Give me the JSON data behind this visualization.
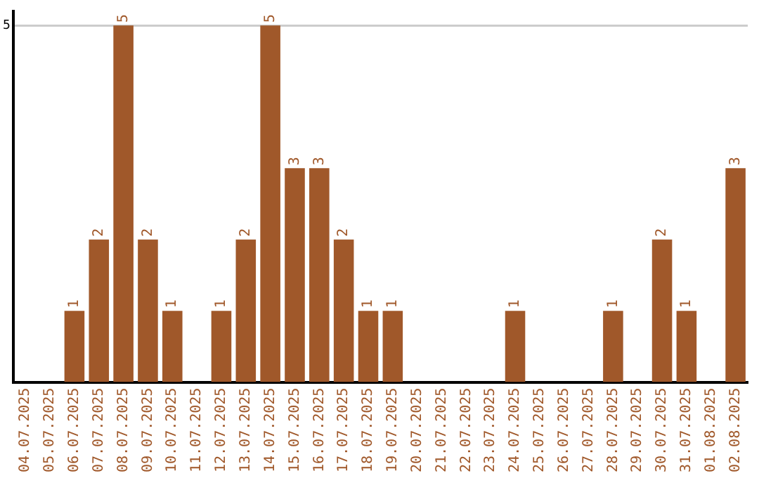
{
  "chart_data": {
    "type": "bar",
    "categories": [
      "04.07.2025",
      "05.07.2025",
      "06.07.2025",
      "07.07.2025",
      "08.07.2025",
      "09.07.2025",
      "10.07.2025",
      "11.07.2025",
      "12.07.2025",
      "13.07.2025",
      "14.07.2025",
      "15.07.2025",
      "16.07.2025",
      "17.07.2025",
      "18.07.2025",
      "19.07.2025",
      "20.07.2025",
      "21.07.2025",
      "22.07.2025",
      "23.07.2025",
      "24.07.2025",
      "25.07.2025",
      "26.07.2025",
      "27.07.2025",
      "28.07.2025",
      "29.07.2025",
      "30.07.2025",
      "31.07.2025",
      "01.08.2025",
      "02.08.2025"
    ],
    "values": [
      0,
      0,
      1,
      2,
      5,
      2,
      1,
      0,
      1,
      2,
      5,
      3,
      3,
      2,
      1,
      1,
      0,
      0,
      0,
      0,
      1,
      0,
      0,
      0,
      1,
      0,
      2,
      1,
      0,
      3
    ],
    "value_labels": [
      null,
      null,
      "1",
      "2",
      "5",
      "2",
      "1",
      null,
      "1",
      "2",
      "5",
      "3",
      "3",
      "2",
      "1",
      "1",
      null,
      null,
      null,
      null,
      "1",
      null,
      null,
      null,
      "1",
      null,
      "2",
      "1",
      null,
      "3"
    ],
    "color": "#a0582a",
    "ylim": [
      0,
      5.2
    ],
    "yticks": [
      5
    ],
    "grid": "y",
    "legend": false
  }
}
